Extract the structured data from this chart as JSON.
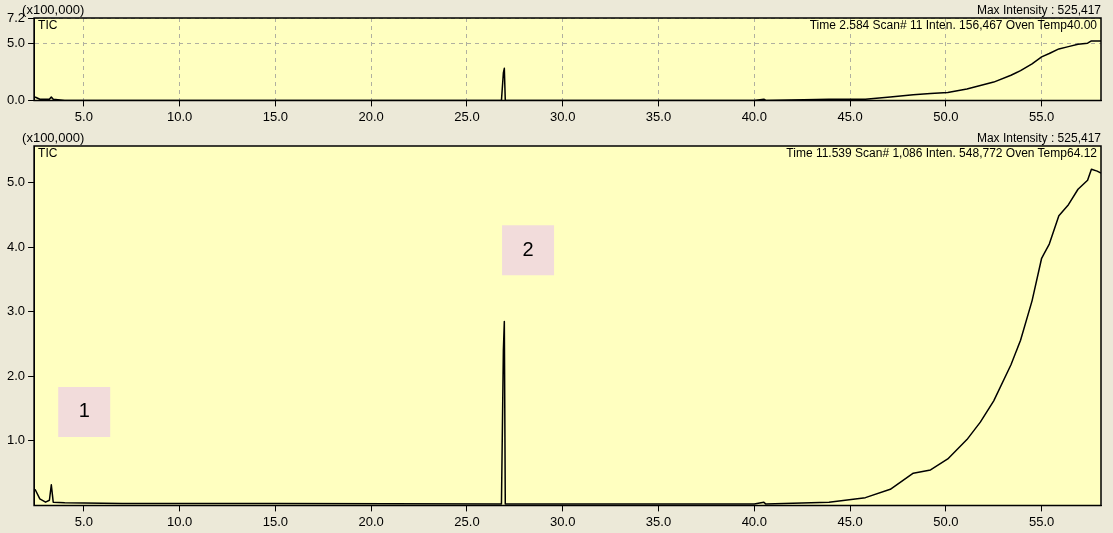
{
  "chart_data": [
    {
      "type": "line",
      "ylabel": "(x100,000)",
      "annotations": [
        "TIC",
        "Time 2.584 Scan# 11 Inten. 156,467 Oven Temp40.00",
        "Max Intensity : 525,417"
      ],
      "xlim": [
        2.4,
        58.1
      ],
      "xticks": [
        {
          "value": 5,
          "label": "5.0"
        },
        {
          "value": 10,
          "label": "10.0"
        },
        {
          "value": 15,
          "label": "15.0"
        },
        {
          "value": 20,
          "label": "20.0"
        },
        {
          "value": 25,
          "label": "25.0"
        },
        {
          "value": 30,
          "label": "30.0"
        },
        {
          "value": 35,
          "label": "35.0"
        },
        {
          "value": 40,
          "label": "40.0"
        },
        {
          "value": 45,
          "label": "45.0"
        },
        {
          "value": 50,
          "label": "50.0"
        },
        {
          "value": 55,
          "label": "55.0"
        }
      ],
      "ylim": [
        0,
        7.2
      ],
      "yticks": [
        {
          "value": 0,
          "label": "0.0"
        },
        {
          "value": 5,
          "label": "5.0"
        },
        7.2
      ],
      "grid": true,
      "series": [
        {
          "color": "#000000",
          "x": [
            2.45,
            2.7,
            3.0,
            3.2,
            3.3,
            3.4,
            4,
            7,
            15,
            26.8,
            26.9,
            26.95,
            27.0,
            40,
            40.5,
            40.6,
            43.9,
            45.8,
            47.1,
            48.3,
            49.2,
            50.1,
            51.1,
            51.8,
            52.5,
            53.4,
            53.9,
            54.5,
            55.0,
            55.4,
            55.9,
            56.4,
            56.9,
            57.4,
            57.6,
            57.9,
            58.1
          ],
          "values": [
            0.3,
            0.1,
            0.1,
            0.1,
            0.3,
            0.1,
            0,
            0,
            0,
            0,
            2.4,
            2.8,
            0,
            0,
            0.1,
            0,
            0.1,
            0.1,
            0.3,
            0.5,
            0.6,
            0.7,
            1,
            1.3,
            1.6,
            2.2,
            2.6,
            3.2,
            3.8,
            4.1,
            4.5,
            4.7,
            4.9,
            5,
            5.2,
            5.2,
            5.2
          ]
        }
      ]
    },
    {
      "type": "line",
      "ylabel": "(x100,000)",
      "annotations": [
        "TIC",
        "Time 11.539 Scan# 1,086 Inten. 548,772 Oven Temp64.12",
        "Max Intensity : 525,417",
        "1",
        "2"
      ],
      "xlim": [
        2.4,
        58.1
      ],
      "xticks": [
        {
          "value": 5,
          "label": "5.0"
        },
        {
          "value": 10,
          "label": "10.0"
        },
        {
          "value": 15,
          "label": "15.0"
        },
        {
          "value": 20,
          "label": "20.0"
        },
        {
          "value": 25,
          "label": "25.0"
        },
        {
          "value": 30,
          "label": "30.0"
        },
        {
          "value": 35,
          "label": "35.0"
        },
        {
          "value": 40,
          "label": "40.0"
        },
        {
          "value": 45,
          "label": "45.0"
        },
        {
          "value": 50,
          "label": "50.0"
        },
        {
          "value": 55,
          "label": "55.0"
        }
      ],
      "ylim": [
        0,
        5.57
      ],
      "yticks": [
        {
          "value": 1,
          "label": "1.0"
        },
        {
          "value": 2,
          "label": "2.0"
        },
        {
          "value": 3,
          "label": "3.0"
        },
        {
          "value": 4,
          "label": "4.0"
        },
        {
          "value": 5,
          "label": "5.0"
        }
      ],
      "series": [
        {
          "color": "#000000",
          "x": [
            2.45,
            2.7,
            3.0,
            3.2,
            3.3,
            3.4,
            4,
            7,
            15,
            26.8,
            26.9,
            26.95,
            27.0,
            40,
            40.5,
            40.6,
            43.9,
            45.8,
            47.1,
            48.3,
            49.2,
            50.1,
            51.1,
            51.8,
            52.5,
            53.4,
            53.9,
            54.5,
            55.0,
            55.4,
            55.9,
            56.4,
            56.9,
            57.4,
            57.6,
            57.9,
            58.1
          ],
          "values": [
            0.25,
            0.1,
            0.05,
            0.08,
            0.32,
            0.05,
            0.04,
            0.03,
            0.03,
            0.02,
            2.4,
            2.85,
            0.02,
            0.02,
            0.05,
            0.02,
            0.05,
            0.12,
            0.25,
            0.5,
            0.55,
            0.72,
            1.02,
            1.29,
            1.62,
            2.18,
            2.56,
            3.17,
            3.83,
            4.05,
            4.49,
            4.66,
            4.9,
            5.04,
            5.21,
            5.18,
            5.15
          ]
        }
      ]
    }
  ]
}
